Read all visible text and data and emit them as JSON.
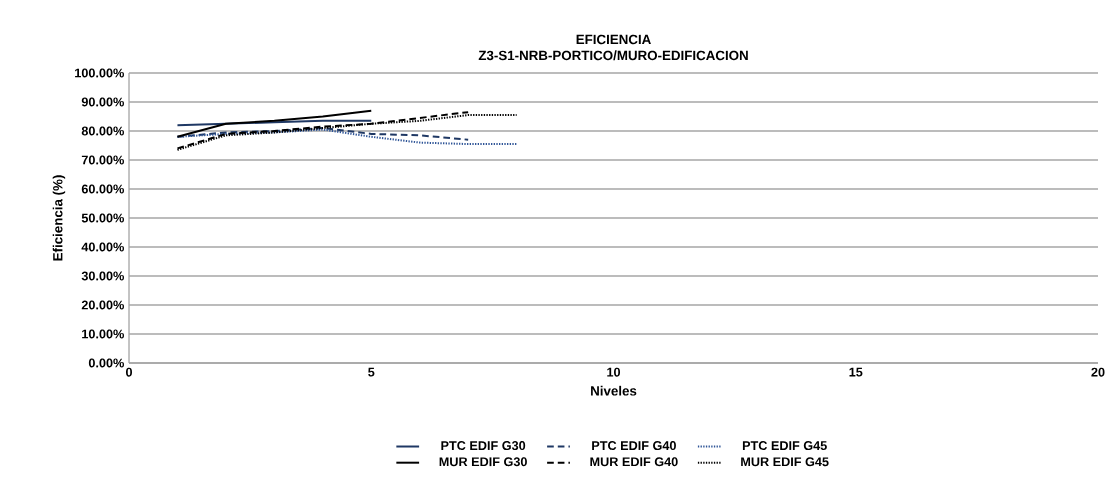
{
  "chart_data": {
    "type": "line",
    "title": "EFICIENCIA",
    "subtitle": "Z3-S1-NRB-PORTICO/MURO-EDIFICACION",
    "xlabel": "Niveles",
    "ylabel": "Eficiencia  (%)",
    "xlim": [
      0,
      20
    ],
    "xticks": [
      0,
      5,
      10,
      15,
      20
    ],
    "ylim": [
      0,
      100
    ],
    "yticks": [
      {
        "value": 0,
        "label": "0.00%"
      },
      {
        "value": 10,
        "label": "10.00%"
      },
      {
        "value": 20,
        "label": "20.00%"
      },
      {
        "value": 30,
        "label": "30.00%"
      },
      {
        "value": 40,
        "label": "40.00%"
      },
      {
        "value": 50,
        "label": "50.00%"
      },
      {
        "value": 60,
        "label": "60.00%"
      },
      {
        "value": 70,
        "label": "70.00%"
      },
      {
        "value": 80,
        "label": "80.00%"
      },
      {
        "value": 90,
        "label": "90.00%"
      },
      {
        "value": 100,
        "label": "100.00%"
      }
    ],
    "grid": "y",
    "legend": "bottom",
    "marker": "none",
    "series": [
      {
        "name": "PTC EDIF G30",
        "color": "#1f3864",
        "line_style": "solid",
        "x": [
          1,
          2,
          3,
          4,
          5
        ],
        "values": [
          82,
          82.5,
          83,
          83.5,
          83.5
        ]
      },
      {
        "name": "PTC EDIF G40",
        "color": "#1f3864",
        "line_style": "dashed",
        "x": [
          1,
          2,
          3,
          4,
          5,
          6,
          7
        ],
        "values": [
          78,
          79.5,
          80,
          81,
          79,
          78.5,
          77
        ]
      },
      {
        "name": "PTC EDIF G45",
        "color": "#2f5597",
        "line_style": "dotted",
        "x": [
          1,
          2,
          3,
          4,
          5,
          6,
          7,
          8
        ],
        "values": [
          78,
          79,
          79.5,
          80.5,
          78,
          76,
          75.5,
          75.5
        ]
      },
      {
        "name": "MUR EDIF G30",
        "color": "#000000",
        "line_style": "solid",
        "x": [
          1,
          2,
          3,
          4,
          5
        ],
        "values": [
          78,
          82.5,
          83.5,
          85,
          87
        ]
      },
      {
        "name": "MUR EDIF G40",
        "color": "#000000",
        "line_style": "dashed",
        "x": [
          1,
          2,
          3,
          4,
          5,
          6,
          7
        ],
        "values": [
          74,
          79,
          80,
          81.5,
          82.5,
          84.5,
          86.5
        ]
      },
      {
        "name": "MUR EDIF G45",
        "color": "#000000",
        "line_style": "dotted",
        "x": [
          1,
          2,
          3,
          4,
          5,
          6,
          7,
          8
        ],
        "values": [
          73.5,
          78.5,
          79.5,
          81,
          82.5,
          83.5,
          85.5,
          85.5
        ]
      }
    ]
  }
}
